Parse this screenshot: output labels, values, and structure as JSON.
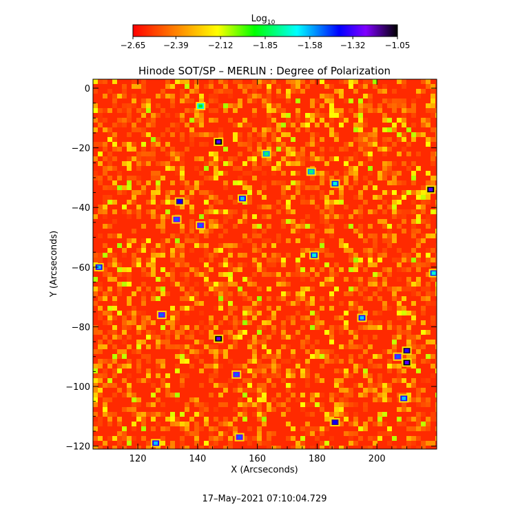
{
  "chart_data": {
    "type": "heatmap",
    "title": "Hinode SOT/SP – MERLIN : Degree of Polarization",
    "xlabel": "X (Arcseconds)",
    "ylabel": "Y (Arcseconds)",
    "xlim": [
      105,
      220
    ],
    "ylim": [
      -121,
      3
    ],
    "x_ticks": [
      120,
      140,
      160,
      180,
      200
    ],
    "x_tick_labels": [
      "120",
      "140",
      "160",
      "180",
      "200"
    ],
    "y_ticks": [
      0,
      -20,
      -40,
      -60,
      -80,
      -100,
      -120
    ],
    "y_tick_labels": [
      "0",
      "−20",
      "−40",
      "−60",
      "−80",
      "−100",
      "−120"
    ],
    "colorbar": {
      "label_base": "Log",
      "label_sub": "10",
      "range": [
        -2.65,
        -1.05
      ],
      "ticks": [
        -2.65,
        -2.39,
        -2.12,
        -1.85,
        -1.58,
        -1.32,
        -1.05
      ],
      "tick_labels": [
        "−2.65",
        "−2.39",
        "−2.12",
        "−1.85",
        "−1.58",
        "−1.32",
        "−1.05"
      ],
      "colormap": [
        "#ff0000",
        "#ff8000",
        "#ffff00",
        "#00ff00",
        "#00ffff",
        "#0000ff",
        "#8000ff",
        "#000000"
      ]
    },
    "background_level": -2.6,
    "features": [
      {
        "x": 147,
        "y": -84,
        "value": -1.3
      },
      {
        "x": 153,
        "y": -96,
        "value": -1.5
      },
      {
        "x": 210,
        "y": -92,
        "value": -1.3
      },
      {
        "x": 210,
        "y": -88,
        "value": -1.35
      },
      {
        "x": 207,
        "y": -90,
        "value": -1.5
      },
      {
        "x": 218,
        "y": -34,
        "value": -1.3
      },
      {
        "x": 147,
        "y": -18,
        "value": -1.3
      },
      {
        "x": 134,
        "y": -38,
        "value": -1.4
      },
      {
        "x": 141,
        "y": -46,
        "value": -1.5
      },
      {
        "x": 133,
        "y": -44,
        "value": -1.5
      },
      {
        "x": 186,
        "y": -112,
        "value": -1.4
      },
      {
        "x": 154,
        "y": -117,
        "value": -1.5
      },
      {
        "x": 179,
        "y": -56,
        "value": -1.7
      },
      {
        "x": 128,
        "y": -76,
        "value": -1.5
      },
      {
        "x": 107,
        "y": -60,
        "value": -1.6
      },
      {
        "x": 186,
        "y": -32,
        "value": -1.7
      },
      {
        "x": 155,
        "y": -37,
        "value": -1.6
      },
      {
        "x": 209,
        "y": -104,
        "value": -1.6
      },
      {
        "x": 178,
        "y": -28,
        "value": -1.8
      },
      {
        "x": 126,
        "y": -119,
        "value": -1.6
      },
      {
        "x": 195,
        "y": -77,
        "value": -1.6
      },
      {
        "x": 219,
        "y": -62,
        "value": -1.7
      },
      {
        "x": 163,
        "y": -22,
        "value": -1.8
      },
      {
        "x": 141,
        "y": -6,
        "value": -1.9
      }
    ],
    "timestamp": "17–May–2021 07:10:04.729"
  }
}
